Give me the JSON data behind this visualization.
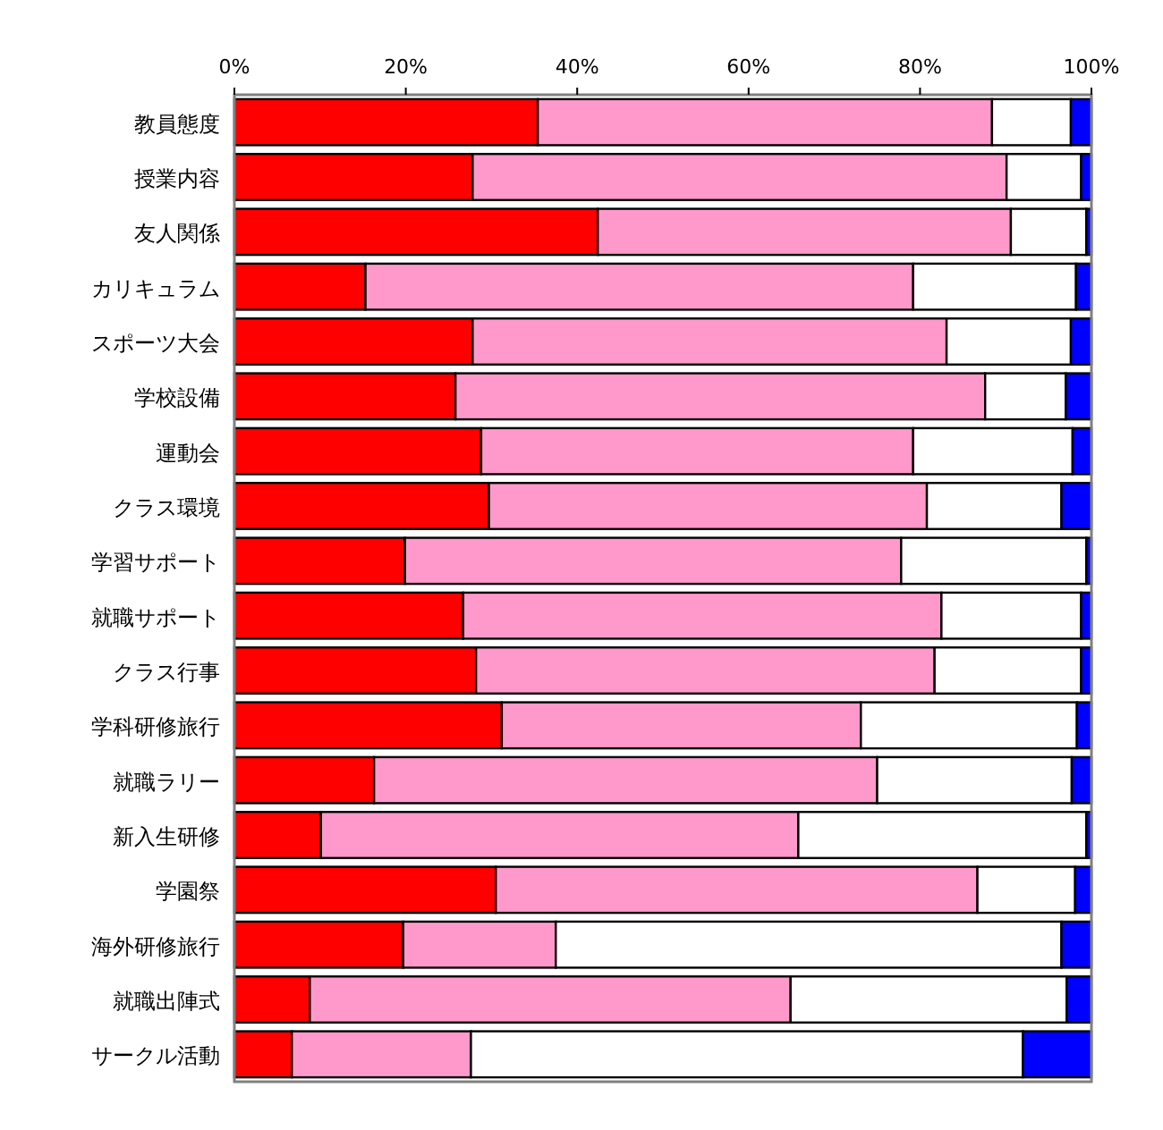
{
  "chart_data": {
    "type": "bar",
    "orientation": "horizontal",
    "stacked": true,
    "grid": false,
    "categories": [
      "教員態度",
      "授業内容",
      "友人関係",
      "カリキュラム",
      "スポーツ大会",
      "学校設備",
      "運動会",
      "クラス環境",
      "学習サポート",
      "就職サポート",
      "クラス行事",
      "学科研修旅行",
      "就職ラリー",
      "新入生研修",
      "学園祭",
      "海外研修旅行",
      "就職出陣式",
      "サークル活動"
    ],
    "xlim": [
      0,
      100
    ],
    "xticks": [
      {
        "value": 0,
        "label": "0%"
      },
      {
        "value": 20,
        "label": "20%"
      },
      {
        "value": 40,
        "label": "40%"
      },
      {
        "value": 60,
        "label": "60%"
      },
      {
        "value": 80,
        "label": "80%"
      },
      {
        "value": 100,
        "label": "100%"
      }
    ],
    "series": [
      {
        "color": "#ff0000",
        "values": [
          35.4,
          27.8,
          42.4,
          15.3,
          27.8,
          25.8,
          28.8,
          29.7,
          19.9,
          26.7,
          28.2,
          31.2,
          16.3,
          10.1,
          30.5,
          19.7,
          8.8,
          6.7
        ]
      },
      {
        "color": "#ff99cc",
        "values": [
          53.0,
          62.3,
          48.2,
          63.9,
          55.3,
          61.8,
          50.4,
          51.1,
          57.9,
          55.8,
          53.5,
          41.9,
          58.7,
          55.7,
          56.2,
          17.8,
          56.1,
          20.9
        ]
      },
      {
        "color": "#ffffff",
        "values": [
          9.2,
          8.7,
          8.8,
          19.0,
          14.5,
          9.4,
          18.6,
          15.7,
          21.6,
          16.3,
          17.1,
          25.2,
          22.7,
          33.6,
          11.4,
          59.0,
          32.2,
          64.4
        ]
      },
      {
        "color": "#0000ff",
        "values": [
          2.4,
          1.2,
          0.6,
          1.8,
          2.4,
          3.0,
          2.2,
          3.5,
          0.6,
          1.2,
          1.2,
          1.7,
          2.3,
          0.6,
          1.9,
          3.5,
          2.9,
          8.0
        ]
      }
    ]
  }
}
